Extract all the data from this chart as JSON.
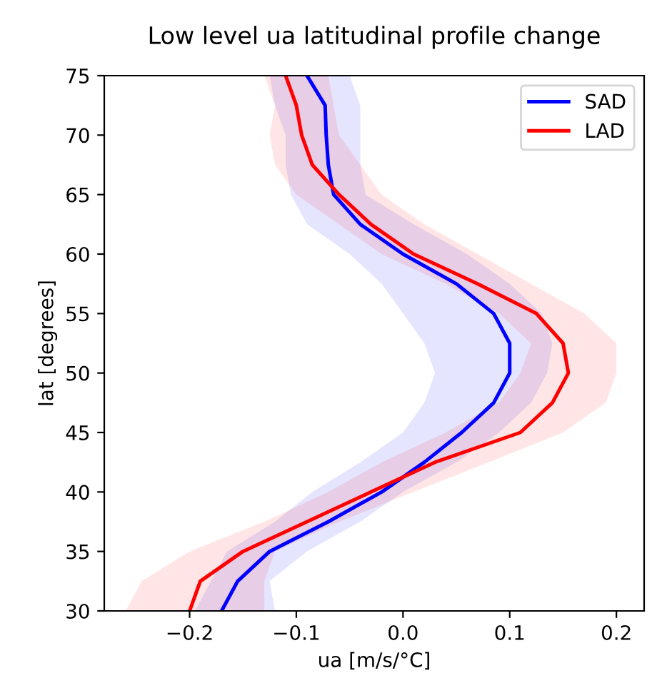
{
  "chart_data": {
    "type": "line",
    "orientation": "horizontal",
    "title": "Low level ua latitudinal profile change",
    "xlabel": "ua [m/s/°C]",
    "ylabel": "lat [degrees]",
    "x": [
      30,
      32.5,
      35,
      37.5,
      40,
      42.5,
      45,
      47.5,
      50,
      52.5,
      55,
      57.5,
      60,
      62.5,
      65,
      67.5,
      70,
      72.5,
      75
    ],
    "series": [
      {
        "name": "SAD",
        "color": "#0000ff",
        "values": [
          -0.17,
          -0.155,
          -0.125,
          -0.07,
          -0.02,
          0.02,
          0.055,
          0.085,
          0.1,
          0.1,
          0.085,
          0.05,
          0.0,
          -0.04,
          -0.065,
          -0.07,
          -0.072,
          -0.073,
          -0.09
        ],
        "lower": [
          -0.195,
          -0.18,
          -0.165,
          -0.12,
          -0.085,
          -0.04,
          0.0,
          0.02,
          0.03,
          0.02,
          0.0,
          -0.02,
          -0.05,
          -0.09,
          -0.105,
          -0.11,
          -0.11,
          -0.12,
          -0.125
        ],
        "upper": [
          -0.12,
          -0.125,
          -0.09,
          -0.04,
          0.0,
          0.05,
          0.09,
          0.12,
          0.135,
          0.14,
          0.13,
          0.1,
          0.06,
          0.01,
          -0.035,
          -0.04,
          -0.04,
          -0.04,
          -0.05
        ]
      },
      {
        "name": "LAD",
        "color": "#ff0000",
        "values": [
          -0.2,
          -0.19,
          -0.15,
          -0.09,
          -0.03,
          0.03,
          0.11,
          0.14,
          0.155,
          0.15,
          0.125,
          0.07,
          0.01,
          -0.03,
          -0.06,
          -0.085,
          -0.095,
          -0.1,
          -0.11
        ],
        "lower": [
          -0.26,
          -0.245,
          -0.2,
          -0.13,
          -0.07,
          -0.02,
          0.04,
          0.09,
          0.11,
          0.12,
          0.09,
          0.04,
          -0.02,
          -0.06,
          -0.1,
          -0.12,
          -0.125,
          -0.12,
          -0.13
        ],
        "upper": [
          -0.13,
          -0.13,
          -0.12,
          -0.06,
          0.01,
          0.08,
          0.15,
          0.19,
          0.2,
          0.2,
          0.17,
          0.12,
          0.07,
          0.02,
          -0.02,
          -0.04,
          -0.06,
          -0.065,
          -0.07
        ]
      }
    ],
    "xlim": [
      -0.28,
      0.226
    ],
    "xticks": [
      {
        "value": -0.2,
        "label": "−0.2"
      },
      {
        "value": -0.1,
        "label": "−0.1"
      },
      {
        "value": 0.0,
        "label": "0.0"
      },
      {
        "value": 0.1,
        "label": "0.1"
      },
      {
        "value": 0.2,
        "label": "0.2"
      }
    ],
    "ylim": [
      30,
      75
    ],
    "yticks": [
      30,
      35,
      40,
      45,
      50,
      55,
      60,
      65,
      70,
      75
    ],
    "legend": "top right",
    "grid": false
  }
}
